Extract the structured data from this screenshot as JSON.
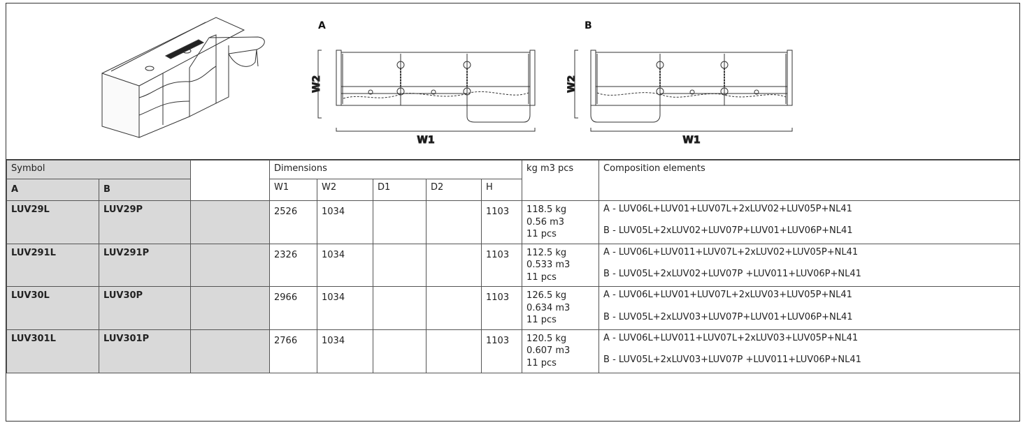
{
  "figure": {
    "variant_a_label": "A",
    "variant_b_label": "B",
    "depth_label": "W2",
    "width_label": "W1"
  },
  "table": {
    "symbol_header": "Symbol",
    "dimensions_header": "Dimensions",
    "packaging_header": "kg m3 pcs",
    "composition_header": "Composition elements",
    "col_a": "A",
    "col_b": "B",
    "dim_cols": [
      "W1",
      "W2",
      "D1",
      "D2",
      "H"
    ],
    "rows": [
      {
        "a": "LUV29L",
        "b": "LUV29P",
        "w1": "2526",
        "w2": "1034",
        "d1": "",
        "d2": "",
        "h": "1103",
        "kg": "118.5 kg",
        "m3": "0.56 m3",
        "pcs": "11 pcs",
        "comp_a": "A - LUV06L+LUV01+LUV07L+2xLUV02+LUV05P+NL41",
        "comp_b": "B - LUV05L+2xLUV02+LUV07P+LUV01+LUV06P+NL41"
      },
      {
        "a": "LUV291L",
        "b": "LUV291P",
        "w1": "2326",
        "w2": "1034",
        "d1": "",
        "d2": "",
        "h": "1103",
        "kg": "112.5 kg",
        "m3": "0.533 m3",
        "pcs": "11 pcs",
        "comp_a": "A - LUV06L+LUV011+LUV07L+2xLUV02+LUV05P+NL41",
        "comp_b": "B - LUV05L+2xLUV02+LUV07P +LUV011+LUV06P+NL41"
      },
      {
        "a": "LUV30L",
        "b": "LUV30P",
        "w1": "2966",
        "w2": "1034",
        "d1": "",
        "d2": "",
        "h": "1103",
        "kg": "126.5 kg",
        "m3": "0.634 m3",
        "pcs": "11 pcs",
        "comp_a": "A - LUV06L+LUV01+LUV07L+2xLUV03+LUV05P+NL41",
        "comp_b": "B - LUV05L+2xLUV03+LUV07P+LUV01+LUV06P+NL41"
      },
      {
        "a": "LUV301L",
        "b": "LUV301P",
        "w1": "2766",
        "w2": "1034",
        "d1": "",
        "d2": "",
        "h": "1103",
        "kg": "120.5 kg",
        "m3": "0.607 m3",
        "pcs": "11 pcs",
        "comp_a": "A - LUV06L+LUV011+LUV07L+2xLUV03+LUV05P+NL41",
        "comp_b": "B - LUV05L+2xLUV03+LUV07P +LUV011+LUV06P+NL41"
      }
    ]
  }
}
